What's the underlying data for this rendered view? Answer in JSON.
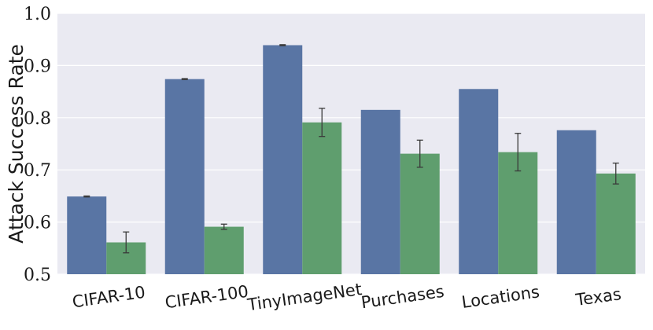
{
  "chart_data": {
    "type": "bar",
    "title": "",
    "xlabel": "",
    "ylabel": "Attack Success Rate",
    "ylim": [
      0.5,
      1.0
    ],
    "yticks": [
      "0.5",
      "0.6",
      "0.7",
      "0.8",
      "0.9",
      "1.0"
    ],
    "grid": true,
    "legend": "none",
    "categories": [
      "CIFAR-10",
      "CIFAR-100",
      "TinyImageNet",
      "Purchases",
      "Locations",
      "Texas"
    ],
    "series": [
      {
        "color": "#5975a4",
        "values": [
          0.649,
          0.874,
          0.939,
          0.815,
          0.855,
          0.776
        ],
        "error": [
          0.001,
          0.001,
          0.001,
          0.0,
          0.0,
          0.0
        ]
      },
      {
        "color": "#5f9e6e",
        "values": [
          0.561,
          0.591,
          0.791,
          0.731,
          0.734,
          0.693
        ],
        "error": [
          0.02,
          0.005,
          0.027,
          0.026,
          0.036,
          0.02
        ]
      }
    ],
    "background_color": "#eaeaf2"
  }
}
